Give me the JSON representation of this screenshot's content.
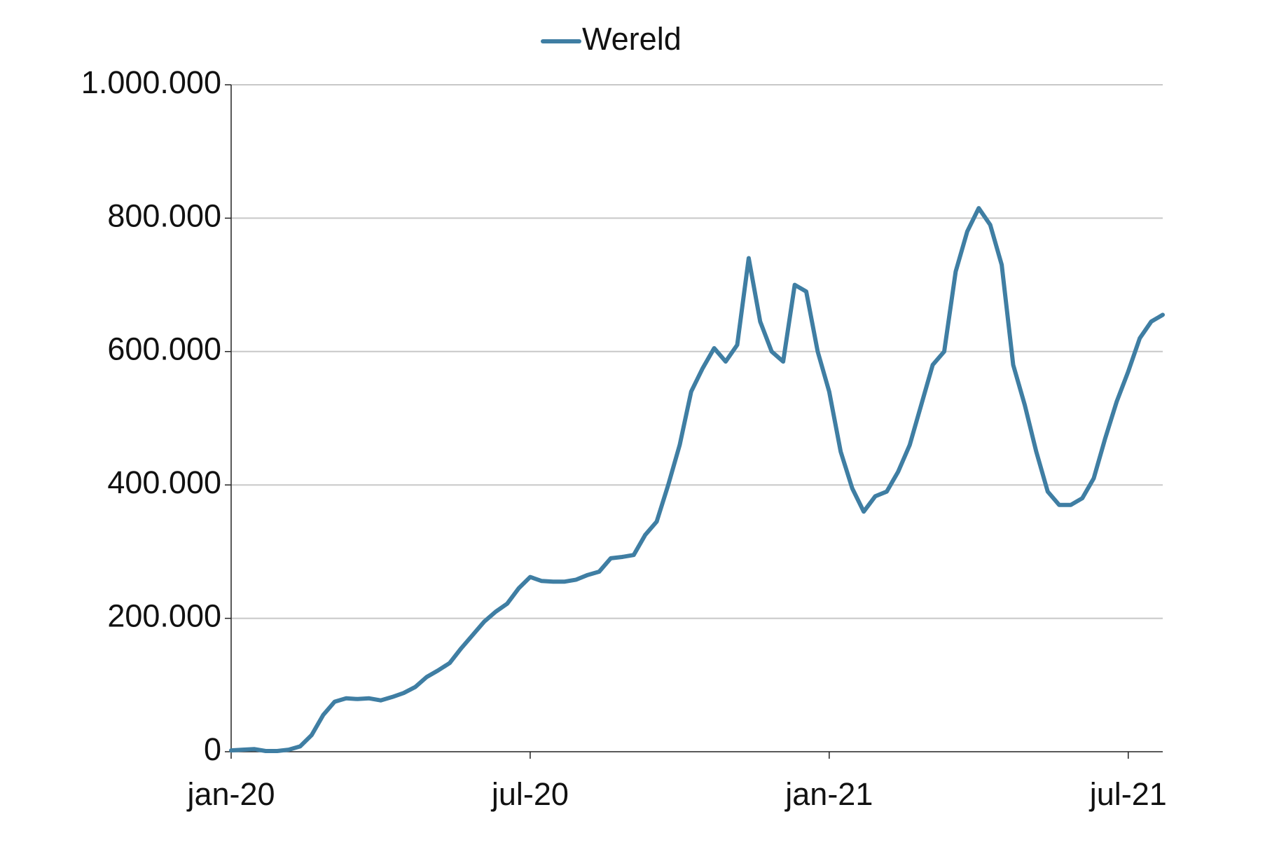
{
  "chart_data": {
    "type": "line",
    "categories": [
      "jan-20",
      null,
      null,
      null,
      null,
      null,
      null,
      null,
      null,
      null,
      null,
      null,
      null,
      null,
      null,
      null,
      null,
      null,
      null,
      null,
      null,
      null,
      null,
      null,
      null,
      null,
      "jul-20",
      null,
      null,
      null,
      null,
      null,
      null,
      null,
      null,
      null,
      null,
      null,
      null,
      null,
      null,
      null,
      null,
      null,
      null,
      null,
      null,
      null,
      null,
      null,
      null,
      null,
      "jan-21",
      null,
      null,
      null,
      null,
      null,
      null,
      null,
      null,
      null,
      null,
      null,
      null,
      null,
      null,
      null,
      null,
      null,
      null,
      null,
      null,
      null,
      null,
      null,
      null,
      null,
      "jul-21",
      null,
      null,
      null
    ],
    "series": [
      {
        "name": "Wereld",
        "color": "#3f7ea3",
        "values": [
          2000,
          3000,
          4000,
          1000,
          1000,
          3000,
          8000,
          25000,
          55000,
          75000,
          80000,
          79000,
          80000,
          77000,
          82000,
          88000,
          97000,
          112000,
          122000,
          133000,
          155000,
          175000,
          195000,
          210000,
          222000,
          245000,
          262000,
          256000,
          255000,
          255000,
          258000,
          265000,
          270000,
          290000,
          292000,
          295000,
          325000,
          345000,
          400000,
          460000,
          540000,
          575000,
          605000,
          585000,
          610000,
          740000,
          645000,
          600000,
          585000,
          700000,
          690000,
          600000,
          540000,
          450000,
          395000,
          360000,
          383000,
          390000,
          420000,
          460000,
          520000,
          580000,
          600000,
          720000,
          780000,
          815000,
          790000,
          730000,
          580000,
          520000,
          450000,
          390000,
          370000,
          370000,
          380000,
          410000,
          470000,
          525000,
          570000,
          620000,
          645000,
          655000
        ]
      }
    ],
    "ylim": [
      0,
      1000000
    ],
    "yticks": [
      0,
      {
        "value": 200000,
        "label": "200.000"
      },
      {
        "value": 400000,
        "label": "400.000"
      },
      {
        "value": 600000,
        "label": "600.000"
      },
      {
        "value": 800000,
        "label": "800.000"
      },
      {
        "value": 1000000,
        "label": "1.000.000"
      }
    ],
    "grid": true,
    "legend": "top"
  }
}
